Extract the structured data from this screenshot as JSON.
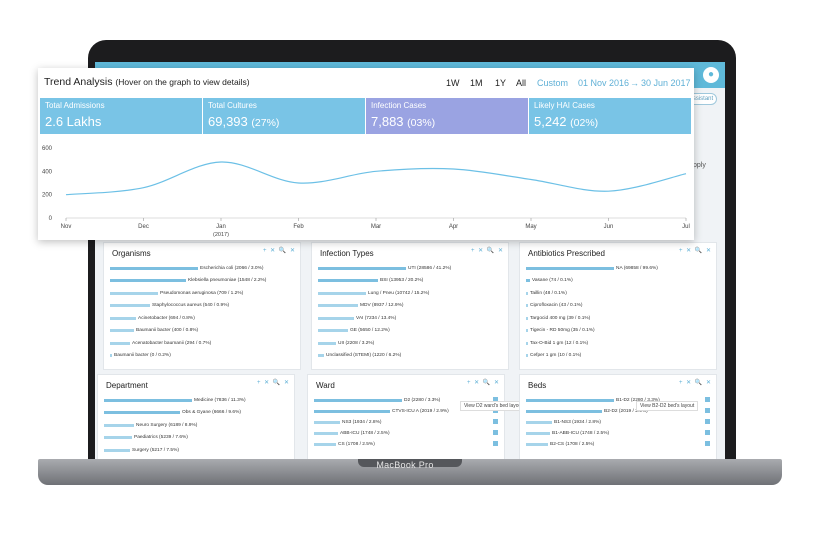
{
  "trend": {
    "title": "Trend Analysis",
    "subtitle": "(Hover on the graph to view details)",
    "ranges": [
      "1W",
      "1M",
      "1Y",
      "All",
      "Custom"
    ],
    "date_from": "01 Nov 2016",
    "arrow": "→",
    "date_to": "30 Jun 2017"
  },
  "kpis": [
    {
      "label": "Total Admissions",
      "value": "2.6 Lakhs",
      "pct": ""
    },
    {
      "label": "Total Cultures",
      "value": "69,393",
      "pct": "(27%)"
    },
    {
      "label": "Infection Cases",
      "value": "7,883",
      "pct": "(03%)"
    },
    {
      "label": "Likely HAI Cases",
      "value": "5,242",
      "pct": "(02%)"
    }
  ],
  "chart_data": {
    "type": "line",
    "x": [
      "Nov",
      "Dec",
      "Jan",
      "Feb",
      "Mar",
      "Apr",
      "May",
      "Jun",
      "Jul"
    ],
    "x_sublabel": "(2017)",
    "values": [
      200,
      260,
      480,
      300,
      400,
      420,
      330,
      230,
      380
    ],
    "y_ticks": [
      "0",
      "200",
      "400",
      "600"
    ],
    "ylim": [
      0,
      600
    ],
    "grid": false
  },
  "app": {
    "assistant": "Assistant",
    "side_text": "pply",
    "user_icon": "user-icon"
  },
  "cards": {
    "tools": "+ ✕ 🔍 ✕",
    "organisms": {
      "title": "Organisms",
      "rows": [
        {
          "label": "Escherichia coli (2066 / 3.0%)",
          "w": 88
        },
        {
          "label": "Klebsiella pneumoniae (1548 / 2.2%)",
          "w": 76
        },
        {
          "label": "Pseudomonas aeruginosa (709 / 1.2%)",
          "w": 48
        },
        {
          "label": "Staphylococcus aureus (540 / 0.9%)",
          "w": 40
        },
        {
          "label": "Acinetobacter (694 / 0.8%)",
          "w": 26
        },
        {
          "label": "Baumanii bacter (400 / 0.8%)",
          "w": 24
        },
        {
          "label": "Acenatobacter baumanii (294 / 0.7%)",
          "w": 20
        },
        {
          "label": "Baumanii bacter (0 / 0.2%)",
          "w": 2
        }
      ]
    },
    "infection": {
      "title": "Infection Types",
      "rows": [
        {
          "label": "UTI (28586 / 41.2%)",
          "w": 88
        },
        {
          "label": "BSI (13953 / 20.2%)",
          "w": 60
        },
        {
          "label": "Lung / Pneu (10742 / 15.2%)",
          "w": 48
        },
        {
          "label": "MDV (8937 / 12.9%)",
          "w": 40
        },
        {
          "label": "VAI (7234 / 13.4%)",
          "w": 36
        },
        {
          "label": "GE (5650 / 12.2%)",
          "w": 30
        },
        {
          "label": "UII (2208 / 3.2%)",
          "w": 18
        },
        {
          "label": "Unclassified (STEMI) (1220 / 6.2%)",
          "w": 6
        }
      ]
    },
    "antibiotics": {
      "title": "Antibiotics Prescribed",
      "rows": [
        {
          "label": "NA (69858 / 99.6%)",
          "w": 88
        },
        {
          "label": "Vasane (74 / 0.1%)",
          "w": 4
        },
        {
          "label": "Taillin (48 / 0.1%)",
          "w": 2
        },
        {
          "label": "Ciprofloxacin (43 / 0.1%)",
          "w": 2
        },
        {
          "label": "Targocid 400 mg (39 / 0.1%)",
          "w": 2
        },
        {
          "label": "Tigecin - RD 50mg (35 / 0.1%)",
          "w": 2
        },
        {
          "label": "Tax-O-Bid 1 gm (12 / 0.1%)",
          "w": 2
        },
        {
          "label": "Cefper 1 gm (10 / 0.1%)",
          "w": 2
        }
      ]
    },
    "department": {
      "title": "Department",
      "rows": [
        {
          "label": "Medicine (7836 / 11.3%)",
          "w": 88
        },
        {
          "label": "Obs & Gyane (6666 / 9.6%)",
          "w": 76
        },
        {
          "label": "Neuro Surgery (6189 / 8.9%)",
          "w": 30
        },
        {
          "label": "Paediatrics (5239 / 7.6%)",
          "w": 28
        },
        {
          "label": "Surgery (5217 / 7.5%)",
          "w": 26
        }
      ]
    },
    "ward": {
      "title": "Ward",
      "tooltip": "View D2 ward's bed layout",
      "rows": [
        {
          "label": "D2 (2280 / 3.3%)",
          "w": 88
        },
        {
          "label": "CTVS-ICU A (2019 / 2.9%)",
          "w": 76
        },
        {
          "label": "NS3 (1934 / 2.8%)",
          "w": 26
        },
        {
          "label": "ABB-ICU (1748 / 2.5%)",
          "w": 24
        },
        {
          "label": "CS (1708 / 2.5%)",
          "w": 22
        }
      ]
    },
    "beds": {
      "title": "Beds",
      "tooltip": "View B2-D2 bed's layout",
      "rows": [
        {
          "label": "B1-D2 (2280 / 3.3%)",
          "w": 88
        },
        {
          "label": "B2-D2 (2019 / 2.9%)",
          "w": 76
        },
        {
          "label": "B1-NS3 (1934 / 2.8%)",
          "w": 26
        },
        {
          "label": "B1-ABB-ICU (1748 / 2.5%)",
          "w": 24
        },
        {
          "label": "B2-CS (1708 / 2.5%)",
          "w": 22
        }
      ]
    }
  },
  "device": {
    "label": "MacBook Pro"
  }
}
